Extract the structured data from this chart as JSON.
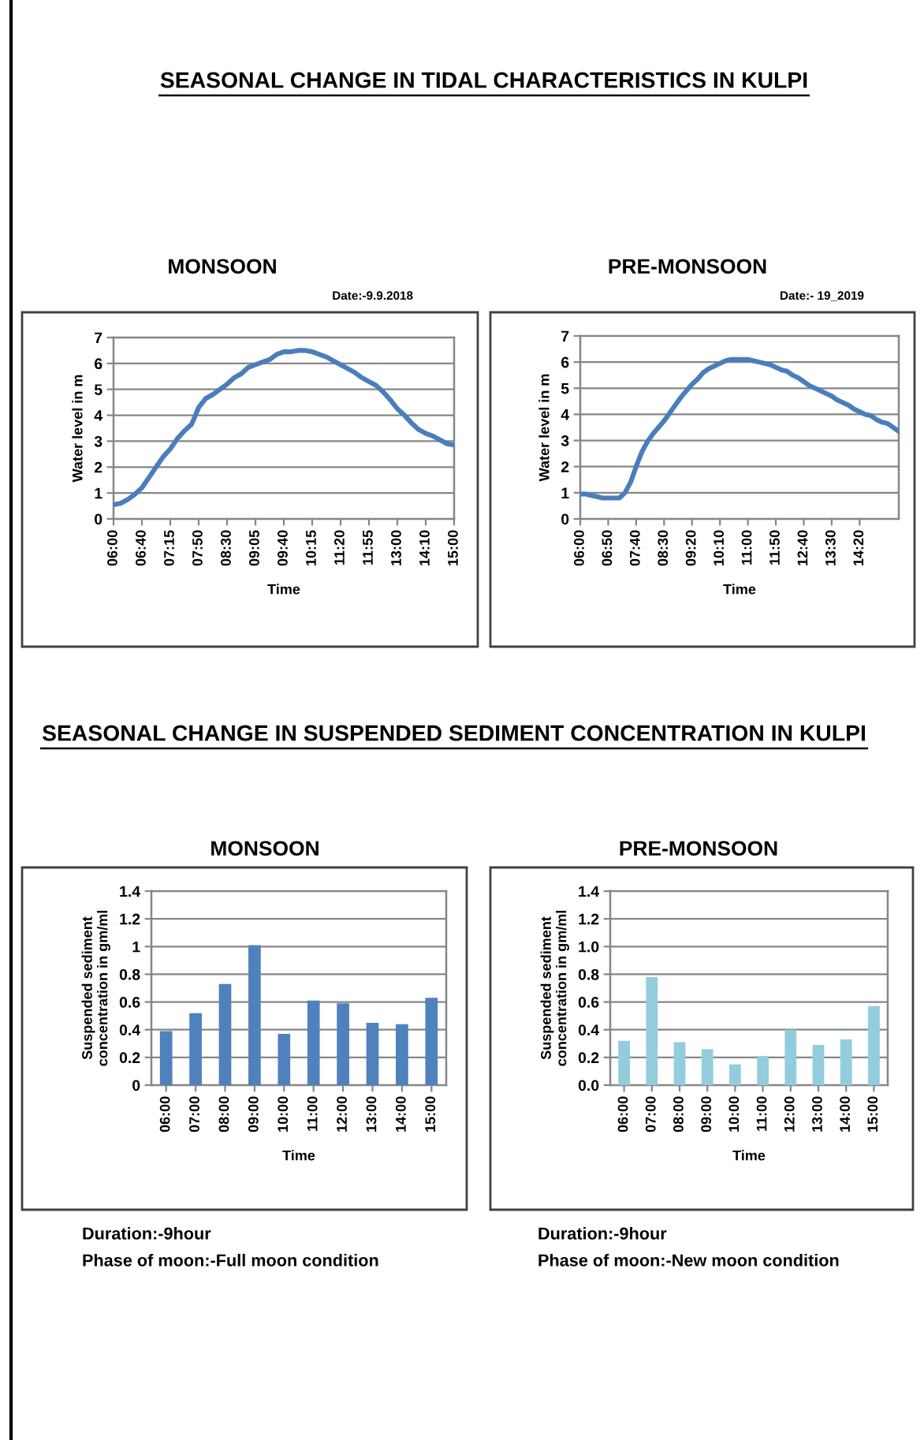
{
  "chart_data": [
    {
      "type": "line",
      "title": "MONSOON",
      "xlabel": "Time",
      "ylabel": "Water level in m",
      "annotations": [
        "SEASONAL CHANGE IN TIDAL CHARACTERISTICS IN KULPI",
        "Date:-9.9.2018"
      ],
      "categories": [
        "06:00",
        null,
        null,
        null,
        "06:40",
        null,
        null,
        null,
        "07:15",
        null,
        null,
        null,
        "07:50",
        null,
        null,
        null,
        "08:30",
        null,
        null,
        null,
        "09:05",
        null,
        null,
        null,
        "09:40",
        null,
        null,
        null,
        "10:15",
        null,
        null,
        null,
        "11:20",
        null,
        null,
        null,
        "11:55",
        null,
        null,
        null,
        "13:00",
        null,
        null,
        null,
        "14:10",
        null,
        null,
        null,
        "15:00"
      ],
      "series": [
        {
          "color": "#4a7ebb",
          "values": [
            0.55,
            0.6,
            0.75,
            0.95,
            1.2,
            1.6,
            2.0,
            2.4,
            2.7,
            3.1,
            3.4,
            3.65,
            4.3,
            4.65,
            4.8,
            5.0,
            5.2,
            5.45,
            5.6,
            5.85,
            5.95,
            6.05,
            6.15,
            6.35,
            6.45,
            6.45,
            6.5,
            6.5,
            6.45,
            6.35,
            6.25,
            6.1,
            5.95,
            5.8,
            5.65,
            5.45,
            5.3,
            5.15,
            4.9,
            4.6,
            4.25,
            4.0,
            3.7,
            3.45,
            3.3,
            3.2,
            3.05,
            2.9,
            2.85
          ]
        }
      ],
      "ylim": [
        0,
        7
      ],
      "yticks": [
        0,
        1,
        2,
        3,
        4,
        5,
        6,
        7
      ],
      "grid": "y"
    },
    {
      "type": "line",
      "title": "PRE-MONSOON",
      "xlabel": "Time",
      "ylabel": "Water level in m",
      "annotations": [
        "Date:- 19_2019"
      ],
      "categories": [
        "06:00",
        null,
        null,
        null,
        null,
        "06:50",
        null,
        null,
        null,
        null,
        "07:40",
        null,
        null,
        null,
        null,
        "08:30",
        null,
        null,
        null,
        null,
        "09:20",
        null,
        null,
        null,
        null,
        "10:10",
        null,
        null,
        null,
        null,
        "11:00",
        null,
        null,
        null,
        null,
        "11:50",
        null,
        null,
        null,
        null,
        "12:40",
        null,
        null,
        null,
        null,
        "13:30",
        null,
        null,
        null,
        null,
        "14:20",
        null,
        null,
        null,
        null,
        null,
        null,
        null
      ],
      "series": [
        {
          "color": "#4a7ebb",
          "values": [
            0.95,
            0.95,
            0.9,
            0.85,
            0.8,
            0.8,
            0.8,
            0.8,
            1.0,
            1.4,
            2.0,
            2.55,
            2.95,
            3.25,
            3.5,
            3.75,
            4.05,
            4.35,
            4.65,
            4.9,
            5.15,
            5.35,
            5.6,
            5.75,
            5.85,
            5.95,
            6.05,
            6.1,
            6.1,
            6.1,
            6.1,
            6.05,
            6.0,
            5.95,
            5.9,
            5.8,
            5.7,
            5.65,
            5.5,
            5.4,
            5.25,
            5.1,
            5.0,
            4.9,
            4.8,
            4.7,
            4.55,
            4.45,
            4.35,
            4.2,
            4.1,
            4.0,
            3.95,
            3.8,
            3.7,
            3.65,
            3.5,
            3.35
          ]
        }
      ],
      "ylim": [
        0,
        7
      ],
      "yticks": [
        0,
        1,
        2,
        3,
        4,
        5,
        6,
        7
      ],
      "grid": "y"
    },
    {
      "type": "bar",
      "title": "MONSOON",
      "xlabel": "Time",
      "ylabel": "Suspended sediment\nconcentration in gm/ml",
      "annotations": [
        "SEASONAL CHANGE IN SUSPENDED SEDIMENT CONCENTRATION IN KULPI",
        "Duration:-9hour",
        "Phase of moon:-Full moon condition"
      ],
      "categories": [
        "06:00",
        "07:00",
        "08:00",
        "09:00",
        "10:00",
        "11:00",
        "12:00",
        "13:00",
        "14:00",
        "15:00"
      ],
      "series": [
        {
          "color": "#4f81bd",
          "values": [
            0.39,
            0.52,
            0.73,
            1.01,
            0.37,
            0.61,
            0.59,
            0.45,
            0.44,
            0.63
          ]
        }
      ],
      "ylim": [
        0,
        1.4
      ],
      "yticks": [
        0,
        0.2,
        0.4,
        0.6,
        0.8,
        1,
        1.2,
        1.4
      ],
      "grid": "y"
    },
    {
      "type": "bar",
      "title": "PRE-MONSOON",
      "xlabel": "Time",
      "ylabel": "Suspended sediment\nconcentration in gm/ml",
      "annotations": [
        "Duration:-9hour",
        "Phase of moon:-New moon condition"
      ],
      "categories": [
        "06:00",
        "07:00",
        "08:00",
        "09:00",
        "10:00",
        "11:00",
        "12:00",
        "13:00",
        "14:00",
        "15:00"
      ],
      "series": [
        {
          "color": "#93cddd",
          "values": [
            0.32,
            0.78,
            0.31,
            0.26,
            0.15,
            0.21,
            0.4,
            0.29,
            0.33,
            0.57
          ]
        }
      ],
      "ylim": [
        0,
        1.4
      ],
      "yticks": [
        {
          "value": 0,
          "label": "0.0"
        },
        0.2,
        0.4,
        0.6,
        0.8,
        {
          "value": 1,
          "label": "1.0"
        },
        1.2,
        1.4
      ],
      "grid": "y"
    }
  ]
}
